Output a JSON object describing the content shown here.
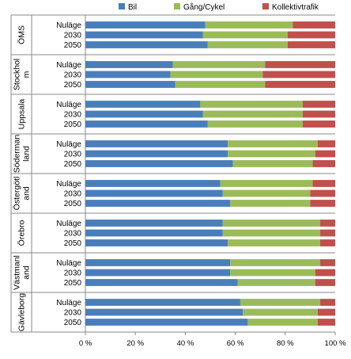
{
  "chart_data": {
    "type": "bar",
    "orientation": "horizontal",
    "stacked": true,
    "percent": true,
    "title": "",
    "xlabel": "",
    "ylabel": "",
    "xlim": [
      0,
      100
    ],
    "x_ticks": [
      "0 %",
      "20 %",
      "40 %",
      "60 %",
      "80 %",
      "100 %"
    ],
    "legend": {
      "position": "top",
      "entries": [
        "Bil",
        "Gång/Cykel",
        "Kollektivtrafik"
      ]
    },
    "colors": {
      "Bil": "#4a7ebb",
      "Gång/Cykel": "#9bbb59",
      "Kollektivtrafik": "#c0504d"
    },
    "groups": [
      {
        "label_lines": [
          "ÖMS"
        ],
        "categories": [
          "Nuläge",
          "2030",
          "2050"
        ],
        "series": [
          {
            "name": "Bil",
            "values": [
              48,
              47,
              49
            ]
          },
          {
            "name": "Gång/Cykel",
            "values": [
              35,
              34,
              32
            ]
          },
          {
            "name": "Kollektivtrafik",
            "values": [
              17,
              19,
              19
            ]
          }
        ]
      },
      {
        "label_lines": [
          "Stockhol",
          "m"
        ],
        "categories": [
          "Nuläge",
          "2030",
          "2050"
        ],
        "series": [
          {
            "name": "Bil",
            "values": [
              35,
              34,
              36
            ]
          },
          {
            "name": "Gång/Cykel",
            "values": [
              37,
              37,
              36
            ]
          },
          {
            "name": "Kollektivtrafik",
            "values": [
              28,
              29,
              28
            ]
          }
        ]
      },
      {
        "label_lines": [
          "Uppsala"
        ],
        "categories": [
          "Nuläge",
          "2030",
          "2050"
        ],
        "series": [
          {
            "name": "Bil",
            "values": [
              46,
              47,
              49
            ]
          },
          {
            "name": "Gång/Cykel",
            "values": [
              41,
              40,
              38
            ]
          },
          {
            "name": "Kollektivtrafik",
            "values": [
              13,
              13,
              13
            ]
          }
        ]
      },
      {
        "label_lines": [
          "Söderman",
          "land"
        ],
        "categories": [
          "Nuläge",
          "2030",
          "2050"
        ],
        "series": [
          {
            "name": "Bil",
            "values": [
              57,
              57,
              59
            ]
          },
          {
            "name": "Gång/Cykel",
            "values": [
              36,
              35,
              32
            ]
          },
          {
            "name": "Kollektivtrafik",
            "values": [
              7,
              8,
              9
            ]
          }
        ]
      },
      {
        "label_lines": [
          "Östergötl",
          "and"
        ],
        "categories": [
          "Nuläge",
          "2030",
          "2050"
        ],
        "series": [
          {
            "name": "Bil",
            "values": [
              54,
              55,
              58
            ]
          },
          {
            "name": "Gång/Cykel",
            "values": [
              37,
              35,
              32
            ]
          },
          {
            "name": "Kollektivtrafik",
            "values": [
              9,
              10,
              10
            ]
          }
        ]
      },
      {
        "label_lines": [
          "Örebro"
        ],
        "categories": [
          "Nuläge",
          "2030",
          "2050"
        ],
        "series": [
          {
            "name": "Bil",
            "values": [
              55,
              55,
              57
            ]
          },
          {
            "name": "Gång/Cykel",
            "values": [
              39,
              39,
              37
            ]
          },
          {
            "name": "Kollektivtrafik",
            "values": [
              6,
              6,
              6
            ]
          }
        ]
      },
      {
        "label_lines": [
          "Västmanl",
          "and"
        ],
        "categories": [
          "Nuläge",
          "2030",
          "2050"
        ],
        "series": [
          {
            "name": "Bil",
            "values": [
              58,
              58,
              61
            ]
          },
          {
            "name": "Gång/Cykel",
            "values": [
              36,
              34,
              31
            ]
          },
          {
            "name": "Kollektivtrafik",
            "values": [
              6,
              8,
              8
            ]
          }
        ]
      },
      {
        "label_lines": [
          "Gävleborg"
        ],
        "categories": [
          "Nuläge",
          "2030",
          "2050"
        ],
        "series": [
          {
            "name": "Bil",
            "values": [
              62,
              63,
              65
            ]
          },
          {
            "name": "Gång/Cykel",
            "values": [
              32,
              30,
              28
            ]
          },
          {
            "name": "Kollektivtrafik",
            "values": [
              6,
              7,
              7
            ]
          }
        ]
      }
    ]
  }
}
